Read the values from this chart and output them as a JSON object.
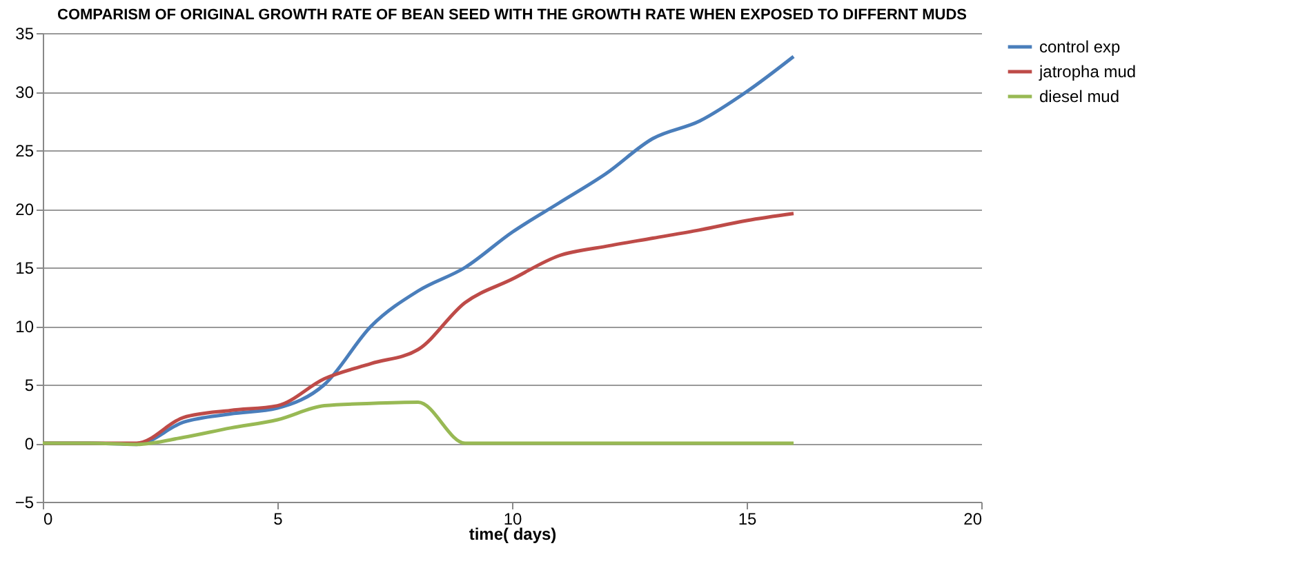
{
  "chart_data": {
    "type": "line",
    "title": "COMPARISM OF ORIGINAL GROWTH RATE OF BEAN SEED WITH  THE GROWTH RATE WHEN EXPOSED TO DIFFERNT MUDS",
    "xlabel": "time( days)",
    "x": [
      0,
      1,
      2,
      3,
      4,
      5,
      6,
      7,
      8,
      9,
      10,
      11,
      12,
      13,
      14,
      15,
      16
    ],
    "series": [
      {
        "name": "control exp",
        "color": "#4a7ebb",
        "values": [
          0,
          0,
          -0.1,
          1.8,
          2.5,
          3,
          5,
          10,
          13,
          15,
          18,
          20.5,
          23,
          26,
          27.5,
          30,
          33
        ]
      },
      {
        "name": "jatropha mud",
        "color": "#be4b48",
        "values": [
          0,
          0,
          0,
          2.2,
          2.8,
          3.2,
          5.5,
          6.8,
          8,
          12,
          14,
          16,
          16.8,
          17.5,
          18.2,
          19,
          19.6
        ]
      },
      {
        "name": "diesel mud",
        "color": "#98b954",
        "values": [
          0,
          0,
          -0.1,
          0.5,
          1.3,
          2,
          3.2,
          3.4,
          3.5,
          0,
          0,
          0,
          0,
          0,
          0,
          0,
          0
        ]
      }
    ],
    "xlim": [
      0,
      20
    ],
    "xticks": [
      0,
      5,
      10,
      15,
      20
    ],
    "ylim": [
      -5,
      35
    ],
    "yticks": [
      -5,
      0,
      5,
      10,
      15,
      20,
      25,
      30,
      35
    ],
    "grid": "y",
    "legend": "right",
    "marker": "none",
    "line_style": "solid"
  }
}
